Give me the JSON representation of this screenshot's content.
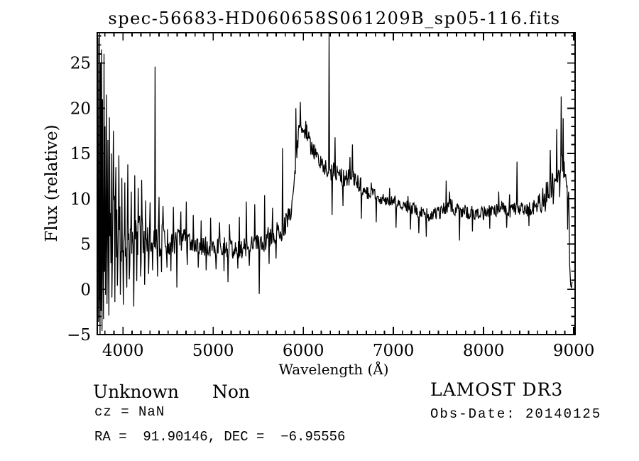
{
  "page": {
    "background": "#ffffff"
  },
  "chart_data": {
    "type": "line",
    "title": "spec-56683-HD060658S061209B_sp05-116.fits",
    "xlabel": "Wavelength (Å)",
    "ylabel": "Flux (relative)",
    "xlim": [
      3715,
      9015
    ],
    "ylim": [
      -5,
      28.35
    ],
    "x_ticks": [
      4000,
      5000,
      6000,
      7000,
      8000,
      9000
    ],
    "y_ticks": [
      -5,
      0,
      5,
      10,
      15,
      20,
      25
    ],
    "x_minor_step": 100,
    "y_minor_step": 1,
    "grid": false,
    "legend": false,
    "line_color": "#000000",
    "frame_color": "#000000",
    "sample_step": 5.5,
    "noise_seed": 20140125,
    "series": [
      {
        "name": "flux",
        "range": [
          3718,
          8984
        ],
        "continuum": [
          [
            3718,
            6.5
          ],
          [
            3780,
            6.2
          ],
          [
            3860,
            6.0
          ],
          [
            3960,
            5.8
          ],
          [
            4060,
            5.6
          ],
          [
            4180,
            5.5
          ],
          [
            4300,
            5.5
          ],
          [
            4420,
            5.6
          ],
          [
            4540,
            5.4
          ],
          [
            4660,
            5.2
          ],
          [
            4780,
            5.1
          ],
          [
            4900,
            4.8
          ],
          [
            5000,
            4.6
          ],
          [
            5100,
            4.7
          ],
          [
            5200,
            4.5
          ],
          [
            5290,
            4.4
          ],
          [
            5390,
            4.7
          ],
          [
            5490,
            5.0
          ],
          [
            5590,
            5.5
          ],
          [
            5690,
            6.0
          ],
          [
            5770,
            6.6
          ],
          [
            5830,
            7.6
          ],
          [
            5880,
            9.5
          ],
          [
            5920,
            14.5
          ],
          [
            5945,
            17.0
          ],
          [
            5970,
            18.0
          ],
          [
            6000,
            17.4
          ],
          [
            6030,
            17.7
          ],
          [
            6070,
            16.2
          ],
          [
            6120,
            15.2
          ],
          [
            6180,
            14.2
          ],
          [
            6240,
            13.4
          ],
          [
            6300,
            12.9
          ],
          [
            6360,
            13.1
          ],
          [
            6420,
            12.4
          ],
          [
            6480,
            12.2
          ],
          [
            6530,
            12.6
          ],
          [
            6580,
            12.2
          ],
          [
            6640,
            11.3
          ],
          [
            6700,
            10.7
          ],
          [
            6760,
            10.6
          ],
          [
            6820,
            10.2
          ],
          [
            6900,
            9.9
          ],
          [
            7000,
            9.8
          ],
          [
            7100,
            9.3
          ],
          [
            7200,
            9.0
          ],
          [
            7300,
            8.5
          ],
          [
            7400,
            8.2
          ],
          [
            7500,
            8.4
          ],
          [
            7570,
            9.0
          ],
          [
            7630,
            9.3
          ],
          [
            7700,
            8.8
          ],
          [
            7800,
            8.5
          ],
          [
            7900,
            8.5
          ],
          [
            8000,
            8.4
          ],
          [
            8100,
            8.7
          ],
          [
            8200,
            8.9
          ],
          [
            8300,
            8.6
          ],
          [
            8380,
            9.0
          ],
          [
            8470,
            8.8
          ],
          [
            8570,
            9.1
          ],
          [
            8650,
            9.9
          ],
          [
            8720,
            10.9
          ],
          [
            8780,
            11.9
          ],
          [
            8830,
            12.8
          ],
          [
            8870,
            13.8
          ],
          [
            8900,
            13.2
          ],
          [
            8920,
            12.0
          ],
          [
            8935,
            9.8
          ],
          [
            8948,
            9.5
          ],
          [
            8955,
            2.0
          ],
          [
            8965,
            0.6
          ],
          [
            8984,
            0.5
          ]
        ],
        "noise_segments": [
          [
            3717,
            3800,
            6.0
          ],
          [
            3800,
            3920,
            4.8
          ],
          [
            3920,
            4080,
            3.4
          ],
          [
            4080,
            4280,
            2.6
          ],
          [
            4280,
            4520,
            2.0
          ],
          [
            4520,
            4720,
            1.5
          ],
          [
            4720,
            5560,
            1.1
          ],
          [
            5560,
            5860,
            1.3
          ],
          [
            5860,
            6160,
            1.1
          ],
          [
            6160,
            6650,
            1.0
          ],
          [
            6650,
            7500,
            0.7
          ],
          [
            7500,
            8600,
            0.8
          ],
          [
            8600,
            8950,
            1.3
          ],
          [
            8950,
            8990,
            0.4
          ]
        ],
        "peaks": [
          [
            3725,
            27.8
          ],
          [
            3733,
            24.0
          ],
          [
            3742,
            28.3
          ],
          [
            3752,
            25.0
          ],
          [
            3763,
            26.5
          ],
          [
            3775,
            21.0
          ],
          [
            3790,
            26.0
          ],
          [
            3800,
            18.0
          ],
          [
            3815,
            21.5
          ],
          [
            3832,
            16.5
          ],
          [
            3850,
            19.0
          ],
          [
            3870,
            15.0
          ],
          [
            3895,
            17.5
          ],
          [
            3922,
            13.5
          ],
          [
            3952,
            14.8
          ],
          [
            3988,
            12.3
          ],
          [
            4022,
            11.8
          ],
          [
            4055,
            13.8
          ],
          [
            4090,
            10.8
          ],
          [
            4130,
            12.6
          ],
          [
            4170,
            11.2
          ],
          [
            4210,
            12.1
          ],
          [
            4250,
            9.8
          ],
          [
            4300,
            9.6
          ],
          [
            4354,
            24.6
          ],
          [
            4400,
            10.2
          ],
          [
            4445,
            9.2
          ],
          [
            4490,
            10.6
          ],
          [
            4560,
            9.1
          ],
          [
            4640,
            8.6
          ],
          [
            4700,
            9.7
          ],
          [
            4780,
            8.2
          ],
          [
            4870,
            7.6
          ],
          [
            4970,
            7.9
          ],
          [
            5070,
            7.4
          ],
          [
            5180,
            7.2
          ],
          [
            5290,
            8.0
          ],
          [
            5370,
            9.7
          ],
          [
            5460,
            9.4
          ],
          [
            5570,
            10.4
          ],
          [
            5660,
            9.0
          ],
          [
            5772,
            15.6
          ],
          [
            5920,
            20.0
          ],
          [
            5965,
            20.7
          ],
          [
            6285,
            29.0
          ],
          [
            6354,
            16.8
          ],
          [
            6520,
            14.6
          ],
          [
            6543,
            16.0
          ],
          [
            6756,
            11.8
          ],
          [
            6960,
            11.2
          ],
          [
            7160,
            10.3
          ],
          [
            7583,
            12.0
          ],
          [
            7625,
            10.8
          ],
          [
            8170,
            10.8
          ],
          [
            8290,
            10.5
          ],
          [
            8370,
            14.1
          ],
          [
            8740,
            15.4
          ],
          [
            8811,
            17.7
          ],
          [
            8858,
            21.3
          ],
          [
            8882,
            18.9
          ]
        ],
        "dips": [
          [
            3728,
            -3.6
          ],
          [
            3737,
            -1.2
          ],
          [
            3748,
            -5.0
          ],
          [
            3758,
            -2.4
          ],
          [
            3770,
            -4.6
          ],
          [
            3782,
            -3.3
          ],
          [
            3808,
            -0.6
          ],
          [
            3825,
            -1.6
          ],
          [
            3842,
            -2.9
          ],
          [
            3878,
            -0.9
          ],
          [
            3908,
            -1.4
          ],
          [
            3936,
            0.4
          ],
          [
            3970,
            -0.6
          ],
          [
            4005,
            -1.7
          ],
          [
            4040,
            0.2
          ],
          [
            4072,
            1.1
          ],
          [
            4118,
            -1.9
          ],
          [
            4150,
            0.9
          ],
          [
            4195,
            1.4
          ],
          [
            4240,
            0.5
          ],
          [
            4285,
            1.7
          ],
          [
            4330,
            2.1
          ],
          [
            4385,
            1.4
          ],
          [
            4430,
            1.9
          ],
          [
            4488,
            2.4
          ],
          [
            4532,
            2.0
          ],
          [
            4598,
            0.2
          ],
          [
            4715,
            2.7
          ],
          [
            4832,
            2.4
          ],
          [
            4920,
            2.1
          ],
          [
            5030,
            2.2
          ],
          [
            5120,
            2.0
          ],
          [
            5165,
            0.8
          ],
          [
            5275,
            2.3
          ],
          [
            5400,
            2.6
          ],
          [
            5512,
            -0.5
          ],
          [
            5622,
            2.8
          ],
          [
            5700,
            3.4
          ],
          [
            6320,
            8.2
          ],
          [
            6440,
            9.2
          ],
          [
            6645,
            7.8
          ],
          [
            6808,
            7.4
          ],
          [
            7028,
            6.8
          ],
          [
            7188,
            6.6
          ],
          [
            7283,
            6.2
          ],
          [
            7362,
            5.8
          ],
          [
            7735,
            5.4
          ],
          [
            7878,
            6.4
          ],
          [
            8068,
            6.7
          ],
          [
            8258,
            6.8
          ],
          [
            8505,
            7.0
          ],
          [
            8682,
            8.6
          ],
          [
            8770,
            9.4
          ],
          [
            8845,
            10.2
          ],
          [
            8930,
            6.6
          ]
        ]
      }
    ]
  },
  "footer": {
    "class_label": "Unknown",
    "subclass_label": "Non",
    "cz_line": "cz = NaN",
    "radec_line": "RA =  91.90146, DEC =  −6.95556",
    "survey_label": "LAMOST DR3",
    "obsdate_line": "Obs-Date: 20140125"
  }
}
